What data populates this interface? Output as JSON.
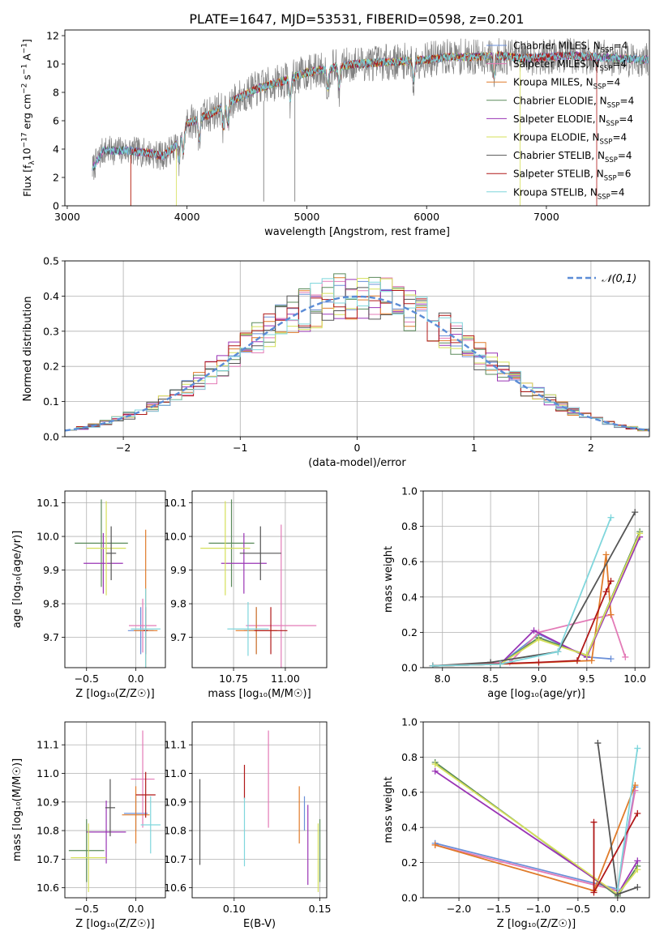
{
  "title": "PLATE=1647, MJD=53531, FIBERID=0598, z=0.201",
  "colors": {
    "Chabrier MILES": "#6a8fd8",
    "Salpeter MILES": "#e37bb7",
    "Kroupa MILES": "#e07b2a",
    "Chabrier ELODIE": "#5a8a5a",
    "Salpeter ELODIE": "#9a35b5",
    "Kroupa ELODIE": "#d5e05a",
    "Chabrier STELIB": "#555555",
    "Salpeter STELIB": "#b01818",
    "Kroupa STELIB": "#7fd6dc"
  },
  "models": [
    "Chabrier MILES",
    "Salpeter MILES",
    "Kroupa MILES",
    "Chabrier ELODIE",
    "Salpeter ELODIE",
    "Kroupa ELODIE",
    "Chabrier STELIB",
    "Salpeter STELIB",
    "Kroupa STELIB"
  ],
  "chart_data": [
    {
      "id": "spectrum",
      "type": "line",
      "xlabel": "wavelength [Angstrom, rest frame]",
      "ylabel": "Flux [f_λ 10^-17 erg cm^-2 s^-1 A^-1]",
      "xlim": [
        2980,
        7860
      ],
      "ylim": [
        0,
        12.4
      ],
      "xticks": [
        3000,
        4000,
        5000,
        6000,
        7000
      ],
      "yticks": [
        0,
        2,
        4,
        6,
        8,
        10,
        12
      ],
      "legend_position": "top-right",
      "legend": [
        {
          "model": "Chabrier MILES",
          "label": "Chabrier MILES, N",
          "n": "4"
        },
        {
          "model": "Salpeter MILES",
          "label": "Salpeter MILES, N",
          "n": "4"
        },
        {
          "model": "Kroupa MILES",
          "label": "Kroupa MILES, N",
          "n": "4"
        },
        {
          "model": "Chabrier ELODIE",
          "label": "Chabrier ELODIE, N",
          "n": "4"
        },
        {
          "model": "Salpeter ELODIE",
          "label": "Salpeter ELODIE, N",
          "n": "4"
        },
        {
          "model": "Kroupa ELODIE",
          "label": "Kroupa ELODIE, N",
          "n": "4"
        },
        {
          "model": "Chabrier STELIB",
          "label": "Chabrier STELIB, N",
          "n": "4"
        },
        {
          "model": "Salpeter STELIB",
          "label": "Salpeter STELIB, N",
          "n": "6"
        },
        {
          "model": "Kroupa STELIB",
          "label": "Kroupa STELIB, N",
          "n": "4"
        }
      ],
      "legend_subscript": "SSP",
      "continuum": [
        [
          3210,
          2.6
        ],
        [
          3300,
          3.9
        ],
        [
          3500,
          3.9
        ],
        [
          3700,
          3.7
        ],
        [
          3800,
          3.5
        ],
        [
          3900,
          4.2
        ],
        [
          4000,
          5.8
        ],
        [
          4200,
          6.5
        ],
        [
          4400,
          7.5
        ],
        [
          4600,
          8.3
        ],
        [
          4800,
          8.8
        ],
        [
          5000,
          9.4
        ],
        [
          5200,
          9.7
        ],
        [
          5400,
          10.0
        ],
        [
          5600,
          10.1
        ],
        [
          5800,
          10.2
        ],
        [
          6000,
          10.3
        ],
        [
          6200,
          10.5
        ],
        [
          6400,
          10.5
        ],
        [
          6600,
          10.6
        ],
        [
          6800,
          10.4
        ],
        [
          7000,
          10.5
        ],
        [
          7200,
          10.6
        ],
        [
          7400,
          10.5
        ],
        [
          7800,
          10.3
        ]
      ],
      "model_start": {
        "Kroupa MILES": 3530,
        "Salpeter STELIB": 3530,
        "Kroupa ELODIE": 3910
      },
      "model_end": {
        "Kroupa ELODIE": 6780,
        "Salpeter STELIB": 7420
      },
      "absorption_lines": [
        3934,
        3969,
        4102,
        4304,
        4341,
        4861,
        5175,
        5270,
        5890,
        6563
      ],
      "data_spikes": [
        4640,
        4900
      ]
    },
    {
      "id": "residuals",
      "type": "step-histogram",
      "xlabel": "(data-model)/error",
      "ylabel": "Normed distribution",
      "xlim": [
        -2.5,
        2.5
      ],
      "ylim": [
        0,
        0.5
      ],
      "xticks": [
        -2,
        -1,
        0,
        1,
        2
      ],
      "yticks": [
        0.0,
        0.1,
        0.2,
        0.3,
        0.4,
        0.5
      ],
      "grid": true,
      "bin_width": 0.1,
      "reference": {
        "label": "𝒩(0,1)",
        "mean": 0,
        "sigma": 1
      },
      "legend_position": "top-right"
    },
    {
      "id": "age-vs-Z",
      "type": "errorbar",
      "xlabel": "Z [log₁₀(Z/Z☉)]",
      "ylabel": "age  [log₁₀(age/yr)]",
      "xlim": [
        -0.72,
        0.3
      ],
      "ylim": [
        9.61,
        10.135
      ],
      "xticks": [
        -0.5,
        0.0
      ],
      "yticks": [
        9.7,
        9.8,
        9.9,
        10.0,
        10.1
      ],
      "grid": true,
      "points": [
        {
          "model": "Chabrier MILES",
          "x": 0.05,
          "xerr": 0.13,
          "y": 9.72,
          "yerr": 0.07
        },
        {
          "model": "Salpeter MILES",
          "x": 0.07,
          "xerr": 0.14,
          "y": 9.735,
          "yerr": 0.08
        },
        {
          "model": "Kroupa MILES",
          "x": 0.1,
          "xerr": 0.12,
          "y": 9.72,
          "yerr": 0.3
        },
        {
          "model": "Chabrier ELODIE",
          "x": -0.35,
          "xerr": 0.27,
          "y": 9.98,
          "yerr": 0.13
        },
        {
          "model": "Salpeter ELODIE",
          "x": -0.33,
          "xerr": 0.2,
          "y": 9.92,
          "yerr": 0.09
        },
        {
          "model": "Kroupa ELODIE",
          "x": -0.3,
          "xerr": 0.2,
          "y": 9.965,
          "yerr": 0.14
        },
        {
          "model": "Chabrier STELIB",
          "x": -0.25,
          "xerr": 0.05,
          "y": 9.95,
          "yerr": 0.08
        },
        {
          "model": "Salpeter STELIB",
          "x": 0.1,
          "xerr": 0.02,
          "y": 9.72,
          "yerr": 0.07
        },
        {
          "model": "Kroupa STELIB",
          "x": 0.1,
          "xerr": 0.15,
          "y": 9.725,
          "yerr": 0.12
        }
      ]
    },
    {
      "id": "age-vs-mass",
      "type": "errorbar",
      "xlabel": "mass [log₁₀(M/M☉)]",
      "ylabel": "",
      "xlim": [
        10.55,
        11.2
      ],
      "ylim": [
        9.61,
        10.135
      ],
      "xticks": [
        10.75,
        11.0
      ],
      "yticks": [
        9.7,
        9.8,
        9.9,
        10.0,
        10.1
      ],
      "grid": true,
      "points": [
        {
          "model": "Chabrier MILES",
          "x": 10.86,
          "xerr": 0.06,
          "y": 9.72,
          "yerr": 0.07
        },
        {
          "model": "Salpeter MILES",
          "x": 10.98,
          "xerr": 0.17,
          "y": 9.735,
          "yerr": 0.3
        },
        {
          "model": "Kroupa MILES",
          "x": 10.86,
          "xerr": 0.1,
          "y": 9.72,
          "yerr": 0.07
        },
        {
          "model": "Chabrier ELODIE",
          "x": 10.74,
          "xerr": 0.11,
          "y": 9.98,
          "yerr": 0.13
        },
        {
          "model": "Salpeter ELODIE",
          "x": 10.8,
          "xerr": 0.11,
          "y": 9.92,
          "yerr": 0.09
        },
        {
          "model": "Kroupa ELODIE",
          "x": 10.71,
          "xerr": 0.12,
          "y": 9.965,
          "yerr": 0.14
        },
        {
          "model": "Chabrier STELIB",
          "x": 10.88,
          "xerr": 0.1,
          "y": 9.95,
          "yerr": 0.08
        },
        {
          "model": "Salpeter STELIB",
          "x": 10.93,
          "xerr": 0.08,
          "y": 9.72,
          "yerr": 0.07
        },
        {
          "model": "Kroupa STELIB",
          "x": 10.82,
          "xerr": 0.1,
          "y": 9.725,
          "yerr": 0.08
        }
      ]
    },
    {
      "id": "mass-weight-vs-age",
      "type": "line",
      "xlabel": "age  [log₁₀(age/yr)]",
      "ylabel": "mass weight",
      "xlim": [
        7.8,
        10.15
      ],
      "ylim": [
        0,
        1.0
      ],
      "xticks": [
        8.0,
        8.5,
        9.0,
        9.5,
        10.0
      ],
      "yticks": [
        0.0,
        0.2,
        0.4,
        0.6,
        0.8,
        1.0
      ],
      "grid": true,
      "series": [
        {
          "model": "Chabrier MILES",
          "points": [
            [
              7.9,
              0.01
            ],
            [
              8.6,
              0.02
            ],
            [
              9.0,
              0.19
            ],
            [
              9.5,
              0.06
            ],
            [
              9.75,
              0.05
            ]
          ]
        },
        {
          "model": "Salpeter MILES",
          "points": [
            [
              7.9,
              0.01
            ],
            [
              8.7,
              0.03
            ],
            [
              9.0,
              0.2
            ],
            [
              9.75,
              0.3
            ],
            [
              9.9,
              0.06
            ]
          ]
        },
        {
          "model": "Kroupa MILES",
          "points": [
            [
              7.9,
              0.01
            ],
            [
              8.6,
              0.02
            ],
            [
              9.55,
              0.04
            ],
            [
              9.7,
              0.64
            ],
            [
              9.75,
              0.3
            ]
          ]
        },
        {
          "model": "Chabrier ELODIE",
          "points": [
            [
              7.9,
              0.01
            ],
            [
              8.6,
              0.02
            ],
            [
              9.0,
              0.17
            ],
            [
              9.5,
              0.07
            ],
            [
              10.05,
              0.77
            ]
          ]
        },
        {
          "model": "Salpeter ELODIE",
          "points": [
            [
              7.9,
              0.01
            ],
            [
              8.6,
              0.02
            ],
            [
              8.95,
              0.21
            ],
            [
              9.5,
              0.06
            ],
            [
              10.05,
              0.74
            ]
          ]
        },
        {
          "model": "Kroupa ELODIE",
          "points": [
            [
              7.9,
              0.01
            ],
            [
              8.6,
              0.02
            ],
            [
              9.0,
              0.16
            ],
            [
              9.5,
              0.07
            ],
            [
              10.05,
              0.76
            ]
          ]
        },
        {
          "model": "Chabrier STELIB",
          "points": [
            [
              7.9,
              0.01
            ],
            [
              8.5,
              0.03
            ],
            [
              9.2,
              0.09
            ],
            [
              10.0,
              0.88
            ]
          ]
        },
        {
          "model": "Salpeter STELIB",
          "points": [
            [
              7.9,
              0.01
            ],
            [
              9.0,
              0.03
            ],
            [
              9.4,
              0.04
            ],
            [
              9.7,
              0.43
            ],
            [
              9.75,
              0.49
            ]
          ]
        },
        {
          "model": "Kroupa STELIB",
          "points": [
            [
              7.9,
              0.01
            ],
            [
              8.6,
              0.02
            ],
            [
              9.2,
              0.09
            ],
            [
              9.75,
              0.85
            ]
          ]
        }
      ]
    },
    {
      "id": "mass-vs-Z",
      "type": "errorbar",
      "xlabel": "Z [log₁₀(Z/Z☉)]",
      "ylabel": "mass [log₁₀(M/M☉)]",
      "xlim": [
        -0.72,
        0.3
      ],
      "ylim": [
        10.565,
        11.18
      ],
      "xticks": [
        -0.5,
        0.0
      ],
      "yticks": [
        10.6,
        10.7,
        10.8,
        10.9,
        11.0,
        11.1
      ],
      "grid": true,
      "points": [
        {
          "model": "Chabrier MILES",
          "x": 0.0,
          "xerr": 0.12,
          "y": 10.86,
          "yerr": 0.06
        },
        {
          "model": "Salpeter MILES",
          "x": 0.07,
          "xerr": 0.12,
          "y": 10.98,
          "yerr": 0.17
        },
        {
          "model": "Kroupa MILES",
          "x": 0.0,
          "xerr": 0.14,
          "y": 10.855,
          "yerr": 0.1
        },
        {
          "model": "Chabrier ELODIE",
          "x": -0.5,
          "xerr": 0.18,
          "y": 10.73,
          "yerr": 0.11
        },
        {
          "model": "Salpeter ELODIE",
          "x": -0.3,
          "xerr": 0.2,
          "y": 10.795,
          "yerr": 0.11
        },
        {
          "model": "Kroupa ELODIE",
          "x": -0.48,
          "xerr": 0.18,
          "y": 10.705,
          "yerr": 0.12
        },
        {
          "model": "Chabrier STELIB",
          "x": -0.26,
          "xerr": 0.05,
          "y": 10.88,
          "yerr": 0.1
        },
        {
          "model": "Salpeter STELIB",
          "x": 0.1,
          "xerr": 0.1,
          "y": 10.925,
          "yerr": 0.08
        },
        {
          "model": "Kroupa STELIB",
          "x": 0.15,
          "xerr": 0.1,
          "y": 10.82,
          "yerr": 0.1
        }
      ]
    },
    {
      "id": "mass-vs-EBV",
      "type": "errorbar",
      "xlabel": "E(B-V)",
      "ylabel": "",
      "xlim": [
        0.0755,
        0.154
      ],
      "ylim": [
        10.565,
        11.18
      ],
      "xticks": [
        0.1,
        0.15
      ],
      "yticks": [
        10.6,
        10.7,
        10.8,
        10.9,
        11.0,
        11.1
      ],
      "grid": true,
      "points": [
        {
          "model": "Chabrier MILES",
          "x": 0.141,
          "y": 10.86,
          "yerr": 0.06
        },
        {
          "model": "Salpeter MILES",
          "x": 0.12,
          "y": 10.98,
          "yerr": 0.17
        },
        {
          "model": "Kroupa MILES",
          "x": 0.138,
          "y": 10.855,
          "yerr": 0.1
        },
        {
          "model": "Chabrier ELODIE",
          "x": 0.15,
          "y": 10.73,
          "yerr": 0.11
        },
        {
          "model": "Salpeter ELODIE",
          "x": 0.143,
          "y": 10.75,
          "yerr": 0.14
        },
        {
          "model": "Kroupa ELODIE",
          "x": 0.149,
          "y": 10.705,
          "yerr": 0.12
        },
        {
          "model": "Chabrier STELIB",
          "x": 0.08,
          "y": 10.83,
          "yerr": 0.15
        },
        {
          "model": "Salpeter STELIB",
          "x": 0.106,
          "y": 10.97,
          "yerr": 0.06
        },
        {
          "model": "Kroupa STELIB",
          "x": 0.106,
          "y": 10.795,
          "yerr": 0.12
        }
      ]
    },
    {
      "id": "mass-weight-vs-Z",
      "type": "line",
      "xlabel": "Z [log₁₀(Z/Z☉)]",
      "ylabel": "mass weight",
      "xlim": [
        -2.45,
        0.4
      ],
      "ylim": [
        0,
        1.0
      ],
      "xticks": [
        -2.0,
        -1.5,
        -1.0,
        -0.5,
        0.0
      ],
      "yticks": [
        0.0,
        0.2,
        0.4,
        0.6,
        0.8,
        1.0
      ],
      "grid": true,
      "series": [
        {
          "model": "Chabrier MILES",
          "points": [
            [
              -2.3,
              0.31
            ],
            [
              0.0,
              0.05
            ],
            [
              0.22,
              0.63
            ]
          ]
        },
        {
          "model": "Salpeter MILES",
          "points": [
            [
              -2.3,
              0.3
            ],
            [
              0.0,
              0.04
            ],
            [
              0.22,
              0.61
            ]
          ]
        },
        {
          "model": "Kroupa MILES",
          "points": [
            [
              -2.3,
              0.3
            ],
            [
              -0.3,
              0.04
            ],
            [
              0.22,
              0.64
            ]
          ]
        },
        {
          "model": "Chabrier ELODIE",
          "points": [
            [
              -2.3,
              0.77
            ],
            [
              0.0,
              0.01
            ],
            [
              0.25,
              0.18
            ]
          ]
        },
        {
          "model": "Salpeter ELODIE",
          "points": [
            [
              -2.3,
              0.72
            ],
            [
              0.0,
              0.02
            ],
            [
              0.25,
              0.21
            ]
          ]
        },
        {
          "model": "Kroupa ELODIE",
          "points": [
            [
              -2.3,
              0.76
            ],
            [
              0.0,
              0.02
            ],
            [
              0.25,
              0.16
            ]
          ]
        },
        {
          "model": "Chabrier STELIB",
          "points": [
            [
              -0.25,
              0.88
            ],
            [
              0.0,
              0.02
            ],
            [
              0.25,
              0.06
            ]
          ]
        },
        {
          "model": "Salpeter STELIB",
          "points": [
            [
              -0.3,
              0.43
            ],
            [
              -0.3,
              0.03
            ],
            [
              0.25,
              0.48
            ]
          ]
        },
        {
          "model": "Kroupa STELIB",
          "points": [
            [
              0.0,
              0.05
            ],
            [
              0.25,
              0.85
            ]
          ]
        }
      ]
    }
  ]
}
